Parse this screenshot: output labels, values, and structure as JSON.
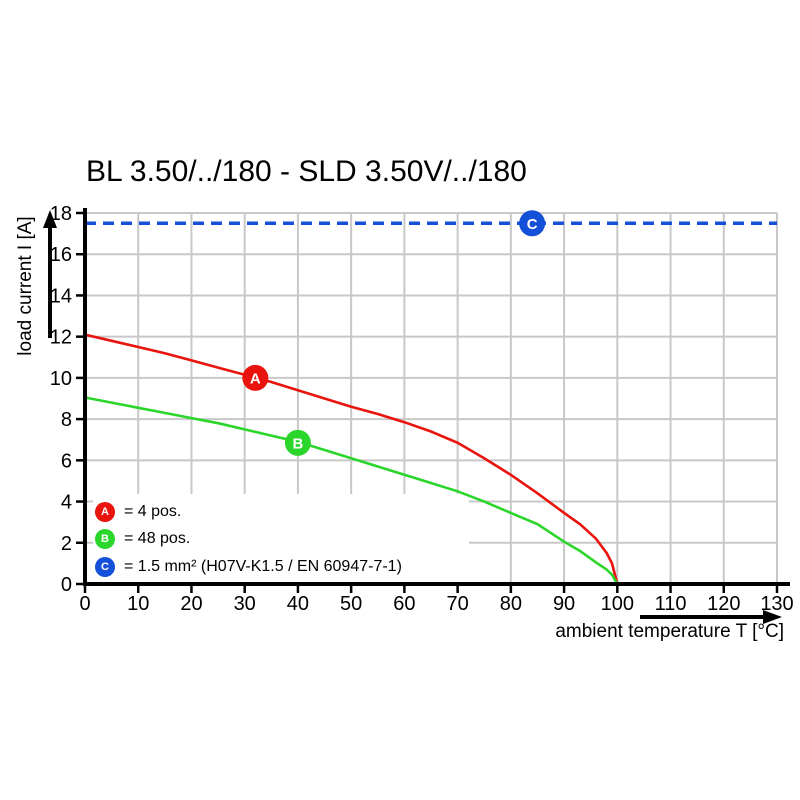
{
  "chart_data": {
    "type": "line",
    "title": "BL 3.50/../180 - SLD 3.50V/../180",
    "xlabel": "ambient temperature T [°C]",
    "ylabel": "load current I [A]",
    "xlim": [
      0,
      130
    ],
    "ylim": [
      0,
      18
    ],
    "x_ticks": [
      0,
      10,
      20,
      30,
      40,
      50,
      60,
      70,
      80,
      90,
      100,
      110,
      120,
      130
    ],
    "y_ticks": [
      0,
      2,
      4,
      6,
      8,
      10,
      12,
      14,
      16,
      18
    ],
    "grid": true,
    "grid_color": "#c8c8c8",
    "axis_color": "#000000",
    "legend_position": "lower-left-inside",
    "series": [
      {
        "name": "A",
        "legend_label": "= 4 pos.",
        "color": "#e8140d",
        "line_style": "solid",
        "marker": {
          "letter": "A",
          "x": 32,
          "y": 10
        },
        "points": [
          [
            0,
            12.1
          ],
          [
            5,
            11.8
          ],
          [
            10,
            11.5
          ],
          [
            15,
            11.2
          ],
          [
            20,
            10.85
          ],
          [
            25,
            10.5
          ],
          [
            30,
            10.15
          ],
          [
            35,
            9.8
          ],
          [
            40,
            9.4
          ],
          [
            45,
            9.0
          ],
          [
            50,
            8.6
          ],
          [
            55,
            8.25
          ],
          [
            60,
            7.85
          ],
          [
            65,
            7.4
          ],
          [
            70,
            6.85
          ],
          [
            75,
            6.1
          ],
          [
            80,
            5.3
          ],
          [
            85,
            4.4
          ],
          [
            90,
            3.45
          ],
          [
            93,
            2.9
          ],
          [
            96,
            2.2
          ],
          [
            98,
            1.5
          ],
          [
            99,
            1.0
          ],
          [
            100,
            0
          ]
        ]
      },
      {
        "name": "B",
        "legend_label": "= 48 pos.",
        "color": "#2bd62b",
        "line_style": "solid",
        "marker": {
          "letter": "B",
          "x": 40,
          "y": 6.85
        },
        "points": [
          [
            0,
            9.05
          ],
          [
            5,
            8.8
          ],
          [
            10,
            8.55
          ],
          [
            15,
            8.3
          ],
          [
            20,
            8.05
          ],
          [
            25,
            7.8
          ],
          [
            30,
            7.5
          ],
          [
            35,
            7.2
          ],
          [
            40,
            6.9
          ],
          [
            45,
            6.5
          ],
          [
            50,
            6.1
          ],
          [
            55,
            5.7
          ],
          [
            60,
            5.3
          ],
          [
            65,
            4.9
          ],
          [
            70,
            4.5
          ],
          [
            75,
            4.0
          ],
          [
            80,
            3.45
          ],
          [
            85,
            2.9
          ],
          [
            90,
            2.05
          ],
          [
            93,
            1.6
          ],
          [
            96,
            1.05
          ],
          [
            98,
            0.7
          ],
          [
            99,
            0.45
          ],
          [
            100,
            0
          ]
        ]
      },
      {
        "name": "C",
        "legend_label": "= 1.5 mm² (H07V-K1.5 / EN 60947-7-1)",
        "color": "#1550d8",
        "line_style": "dashed",
        "marker": {
          "letter": "C",
          "x": 84,
          "y": 17.5
        },
        "points": [
          [
            0,
            17.5
          ],
          [
            130,
            17.5
          ]
        ]
      }
    ]
  }
}
